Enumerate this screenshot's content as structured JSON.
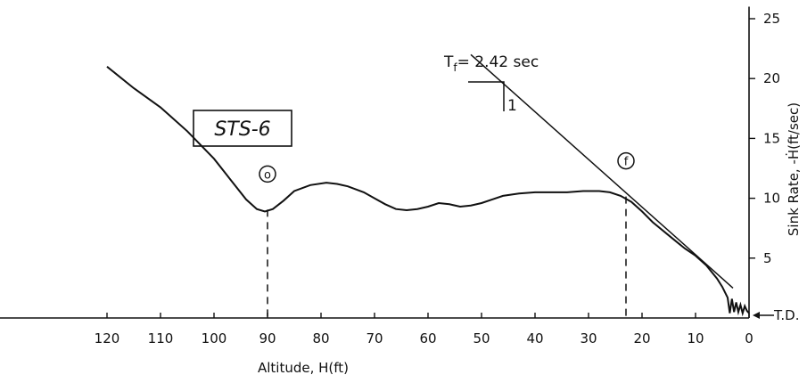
{
  "chart_data": {
    "type": "line",
    "title": "",
    "xlabel": "Altitude, H(ft)",
    "ylabel": "Sink Rate, -Ḣ(ft/sec)",
    "x_reversed": true,
    "xlim": [
      0,
      125
    ],
    "ylim": [
      0,
      25
    ],
    "x_ticks": [
      120,
      110,
      100,
      90,
      80,
      70,
      60,
      50,
      40,
      30,
      20,
      10,
      0
    ],
    "y_ticks": [
      5,
      10,
      15,
      20,
      25
    ],
    "grid": false,
    "y_axis_side": "right",
    "series": [
      {
        "x": [
          120,
          115,
          110,
          105,
          100,
          97,
          94,
          92,
          90.5,
          89,
          87,
          85,
          82,
          79,
          77,
          75,
          72,
          70,
          68,
          66,
          64,
          62,
          60,
          58,
          56,
          54,
          52,
          50,
          48,
          46,
          43,
          40,
          37,
          34,
          31,
          28,
          26,
          24,
          22,
          20,
          18,
          15,
          12,
          10,
          8,
          6,
          5,
          4,
          3.6,
          3.2,
          2.8,
          2.4,
          2,
          1.6,
          1.2,
          0.8,
          0.4,
          0
        ],
        "y": [
          21.0,
          19.2,
          17.6,
          15.6,
          13.3,
          11.6,
          9.9,
          9.1,
          8.9,
          9.1,
          9.8,
          10.6,
          11.1,
          11.3,
          11.2,
          11.0,
          10.5,
          10.0,
          9.5,
          9.1,
          9.0,
          9.1,
          9.3,
          9.6,
          9.5,
          9.3,
          9.4,
          9.6,
          9.9,
          10.2,
          10.4,
          10.5,
          10.5,
          10.5,
          10.6,
          10.6,
          10.5,
          10.2,
          9.7,
          8.9,
          8.0,
          6.9,
          5.8,
          5.2,
          4.4,
          3.3,
          2.6,
          1.7,
          0.4,
          1.6,
          0.5,
          1.3,
          0.5,
          1.1,
          0.4,
          1.0,
          0.6,
          0.4
        ]
      }
    ],
    "tangent_line": {
      "x": [
        52,
        3
      ],
      "y": [
        22,
        2.5
      ]
    },
    "markers": [
      {
        "label": "o",
        "x": 90,
        "y": 8.9
      },
      {
        "label": "f",
        "x": 23,
        "y": 10.0
      }
    ],
    "annotations": {
      "tf_label": "T",
      "tf_subscript": "f",
      "tf_value": "= 2.42 sec",
      "slope_label": "1",
      "box_label": "STS-6",
      "td_label": "T.D."
    }
  }
}
